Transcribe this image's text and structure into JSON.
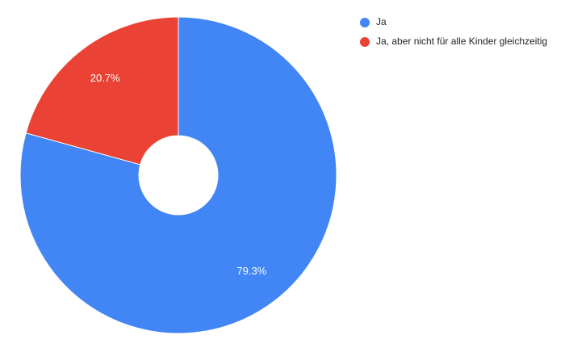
{
  "chart_data": {
    "type": "pie",
    "categories": [
      "Ja",
      "Ja, aber nicht für alle Kinder gleichzeitig"
    ],
    "values": [
      79.3,
      20.7
    ],
    "value_labels": [
      "79.3%",
      "20.7%"
    ],
    "colors": [
      "#4285f4",
      "#ea4335"
    ],
    "legend": "top-right"
  }
}
